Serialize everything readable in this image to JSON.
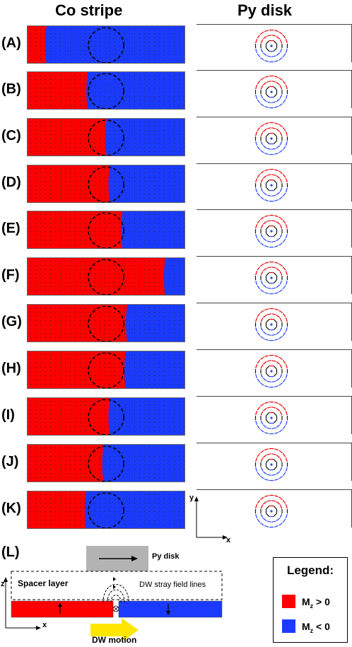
{
  "headers": {
    "left": "Co stripe",
    "right": "Py disk"
  },
  "colors": {
    "positive": "#ff0000",
    "negative": "#1a3bff",
    "py_box": "#b3b3b3",
    "motion_arrow": "#ffe600"
  },
  "rows": [
    {
      "label": "(A)",
      "wall_position": 0.12
    },
    {
      "label": "(B)",
      "wall_position": 0.38
    },
    {
      "label": "(C)",
      "wall_position": 0.5
    },
    {
      "label": "(D)",
      "wall_position": 0.52
    },
    {
      "label": "(E)",
      "wall_position": 0.6
    },
    {
      "label": "(F)",
      "wall_position": 0.87
    },
    {
      "label": "(G)",
      "wall_position": 0.63
    },
    {
      "label": "(H)",
      "wall_position": 0.62
    },
    {
      "label": "(I)",
      "wall_position": 0.52
    },
    {
      "label": "(J)",
      "wall_position": 0.48
    },
    {
      "label": "(K)",
      "wall_position": 0.37
    }
  ],
  "axes_labels": {
    "y": "y",
    "x": "x"
  },
  "panel_L": {
    "label": "(L)",
    "py_disk": "Py disk",
    "spacer_layer": "Spacer layer",
    "stray_field": "DW stray field lines",
    "axis_z": "z",
    "axis_x": "x",
    "dw_motion": "DW motion"
  },
  "legend": {
    "title": "Legend:",
    "pos": "M",
    "pos_sub": "z",
    "pos_rel": " > 0",
    "neg": "M",
    "neg_sub": "z",
    "neg_rel": " < 0"
  }
}
